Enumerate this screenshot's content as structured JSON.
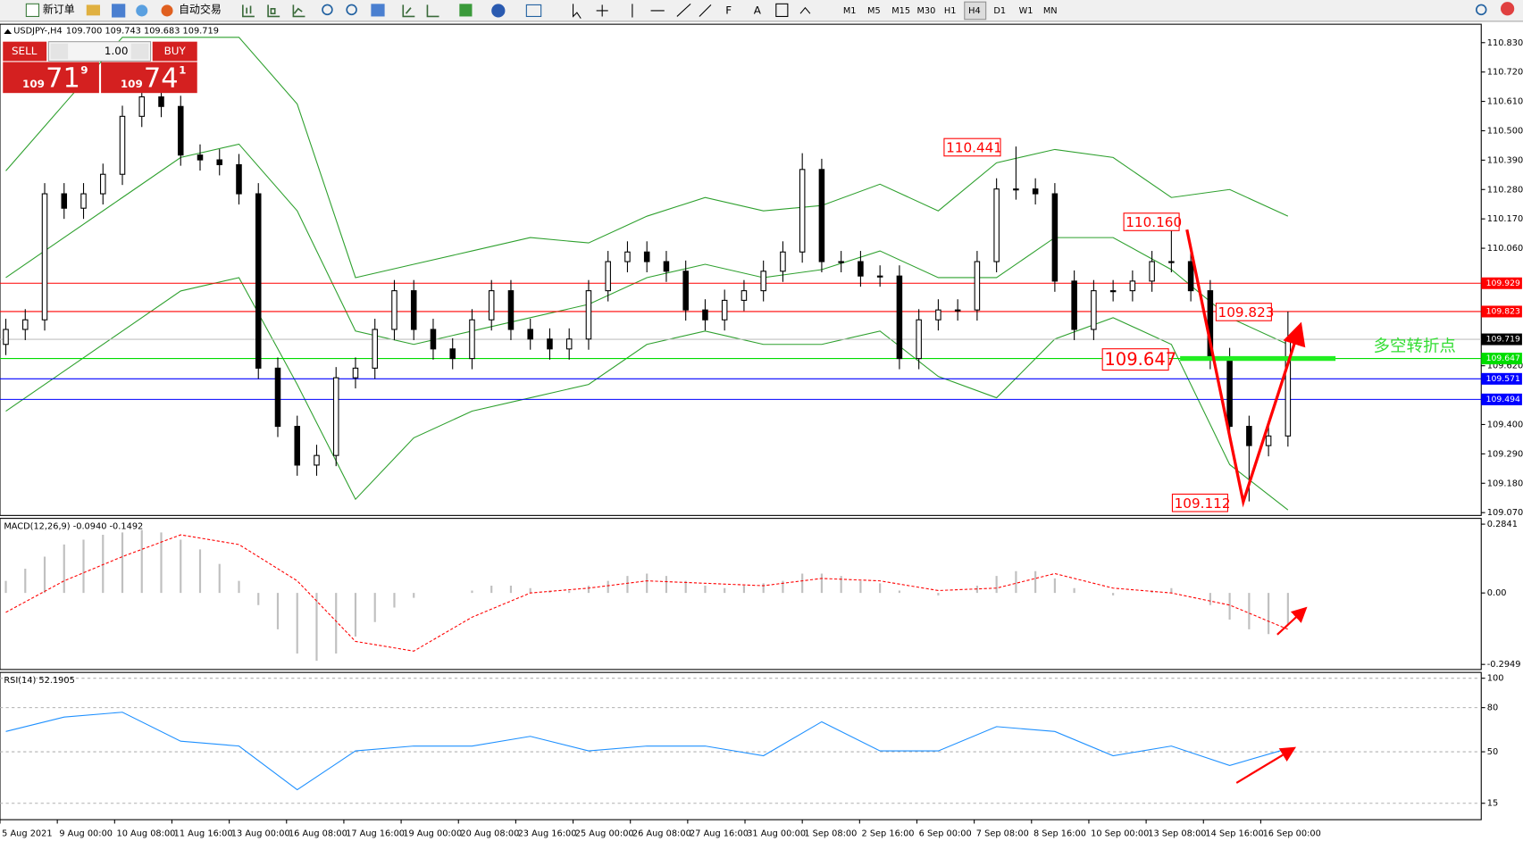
{
  "toolbar": {
    "new_order": "新订单",
    "auto_trading": "自动交易",
    "timeframes": [
      "M1",
      "M5",
      "M15",
      "M30",
      "H1",
      "H4",
      "D1",
      "W1",
      "MN"
    ]
  },
  "trade_panel": {
    "sell": "SELL",
    "buy": "BUY",
    "volume": "1.00",
    "sell_price": {
      "prefix": "109",
      "big": "71",
      "sup": "9"
    },
    "buy_price": {
      "prefix": "109",
      "big": "74",
      "sup": "1"
    }
  },
  "chart_data": [
    {
      "type": "candlestick",
      "title": "USDJPY-,H4",
      "quote": "109.700 109.743 109.683 109.719",
      "up_color": "#ffffff",
      "down_color": "#000000",
      "open": [
        109.7,
        109.756,
        109.792,
        110.264,
        110.21,
        110.264,
        110.337,
        110.554,
        110.627,
        110.591,
        110.409,
        110.391,
        110.373,
        110.264,
        109.611,
        109.393,
        109.248,
        109.284,
        109.575,
        109.611,
        109.756,
        109.901,
        109.756,
        109.683,
        109.647,
        109.792,
        109.901,
        109.756,
        109.72,
        109.683,
        109.72,
        109.901,
        110.01,
        110.046,
        110.01,
        109.974,
        109.829,
        109.792,
        109.865,
        109.901,
        109.974,
        110.046,
        110.355,
        110.01,
        110.01,
        109.956,
        109.956,
        109.647,
        109.792,
        109.829,
        109.829,
        110.01,
        110.282,
        110.282,
        110.264,
        109.937,
        109.756,
        109.901,
        109.901,
        109.937,
        110.01,
        110.01,
        109.901,
        109.647,
        109.393,
        109.321,
        109.357
      ],
      "high": [
        109.796,
        109.832,
        110.304,
        110.304,
        110.304,
        110.377,
        110.594,
        110.667,
        110.667,
        110.631,
        110.449,
        110.431,
        110.413,
        110.304,
        109.651,
        109.433,
        109.324,
        109.615,
        109.651,
        109.796,
        109.941,
        109.941,
        109.796,
        109.723,
        109.832,
        109.941,
        109.941,
        109.796,
        109.76,
        109.76,
        109.941,
        110.05,
        110.086,
        110.086,
        110.05,
        110.014,
        109.869,
        109.905,
        109.941,
        110.014,
        110.086,
        110.416,
        110.395,
        110.05,
        110.05,
        109.996,
        109.996,
        109.832,
        109.869,
        109.869,
        110.05,
        110.322,
        110.441,
        110.322,
        110.304,
        109.977,
        109.941,
        109.941,
        109.977,
        110.05,
        110.16,
        110.05,
        109.941,
        109.687,
        109.433,
        109.397,
        109.823
      ],
      "low": [
        109.66,
        109.716,
        109.752,
        110.17,
        110.17,
        110.224,
        110.297,
        110.514,
        110.551,
        110.369,
        110.351,
        110.333,
        110.224,
        109.571,
        109.353,
        109.208,
        109.208,
        109.244,
        109.535,
        109.571,
        109.716,
        109.716,
        109.643,
        109.607,
        109.607,
        109.752,
        109.716,
        109.68,
        109.643,
        109.643,
        109.68,
        109.861,
        109.97,
        109.97,
        109.934,
        109.789,
        109.752,
        109.752,
        109.825,
        109.861,
        109.934,
        110.006,
        109.97,
        109.97,
        109.916,
        109.916,
        109.607,
        109.607,
        109.752,
        109.789,
        109.789,
        109.97,
        110.242,
        110.224,
        109.897,
        109.716,
        109.716,
        109.861,
        109.861,
        109.897,
        109.97,
        109.861,
        109.607,
        109.353,
        109.112,
        109.281,
        109.317
      ],
      "close": [
        109.756,
        109.792,
        110.264,
        110.21,
        110.264,
        110.337,
        110.554,
        110.627,
        110.591,
        110.409,
        110.391,
        110.373,
        110.264,
        109.611,
        109.393,
        109.248,
        109.284,
        109.575,
        109.611,
        109.756,
        109.901,
        109.756,
        109.683,
        109.647,
        109.792,
        109.901,
        109.756,
        109.72,
        109.683,
        109.72,
        109.901,
        110.01,
        110.046,
        110.01,
        109.974,
        109.829,
        109.792,
        109.865,
        109.901,
        109.974,
        110.046,
        110.355,
        110.01,
        110.01,
        109.956,
        109.956,
        109.647,
        109.792,
        109.829,
        109.829,
        110.01,
        110.282,
        110.282,
        110.264,
        109.937,
        109.756,
        109.901,
        109.901,
        109.937,
        110.01,
        110.01,
        109.901,
        109.647,
        109.393,
        109.321,
        109.357,
        109.719
      ],
      "bands": {
        "color": "#2ea02e",
        "x": [
          0,
          3,
          6,
          9,
          12,
          15,
          18,
          21,
          24,
          27,
          30,
          33,
          36,
          39,
          42,
          45,
          48,
          51,
          54,
          57,
          60,
          63,
          66
        ],
        "upper": [
          110.35,
          110.6,
          110.85,
          110.85,
          110.85,
          110.6,
          109.95,
          110.0,
          110.05,
          110.1,
          110.08,
          110.18,
          110.25,
          110.2,
          110.22,
          110.3,
          110.2,
          110.38,
          110.43,
          110.4,
          110.25,
          110.28,
          110.18
        ],
        "middle": [
          109.95,
          110.1,
          110.25,
          110.4,
          110.45,
          110.2,
          109.75,
          109.7,
          109.75,
          109.8,
          109.85,
          109.95,
          110.0,
          109.95,
          109.98,
          110.05,
          109.95,
          109.95,
          110.1,
          110.1,
          109.98,
          109.8,
          109.7
        ],
        "lower": [
          109.45,
          109.6,
          109.75,
          109.9,
          109.95,
          109.55,
          109.12,
          109.35,
          109.45,
          109.5,
          109.55,
          109.7,
          109.75,
          109.7,
          109.7,
          109.75,
          109.58,
          109.5,
          109.72,
          109.8,
          109.7,
          109.25,
          109.08
        ]
      },
      "levels": [
        {
          "value": 109.929,
          "color": "#ff0000"
        },
        {
          "value": 109.823,
          "color": "#ff0000"
        },
        {
          "value": 109.719,
          "color": "#c0c0c0",
          "label_color": "#000000"
        },
        {
          "value": 109.647,
          "color": "#00dd00"
        },
        {
          "value": 109.571,
          "color": "#0000ff"
        },
        {
          "value": 109.494,
          "color": "#0000ff"
        }
      ],
      "annotations": [
        110.441,
        {
          "value": 110.16,
          "label": "110.160"
        },
        109.823,
        109.647,
        109.112
      ],
      "pivot_note": "多空转折点",
      "ylim": [
        109.063,
        110.899
      ],
      "yticks": [
        {
          "value": 110.83,
          "label": "110.830"
        },
        {
          "value": 110.72,
          "label": "110.720"
        },
        {
          "value": 110.61,
          "label": "110.610"
        },
        {
          "value": 110.5,
          "label": "110.500"
        },
        {
          "value": 110.39,
          "label": "110.390"
        },
        {
          "value": 110.28,
          "label": "110.280"
        },
        {
          "value": 110.17,
          "label": "110.170"
        },
        {
          "value": 110.06,
          "label": "110.060"
        },
        {
          "value": 109.62,
          "label": "109.620"
        },
        {
          "value": 109.4,
          "label": "109.400"
        },
        {
          "value": 109.29,
          "label": "109.290"
        },
        {
          "value": 109.18,
          "label": "109.180"
        },
        {
          "value": 109.07,
          "label": "109.070"
        }
      ],
      "x_labels": [
        "5 Aug 2021",
        "9 Aug 00:00",
        "10 Aug 08:00",
        "11 Aug 16:00",
        "13 Aug 00:00",
        "16 Aug 08:00",
        "17 Aug 16:00",
        "19 Aug 00:00",
        "20 Aug 08:00",
        "23 Aug 16:00",
        "25 Aug 00:00",
        "26 Aug 08:00",
        "27 Aug 16:00",
        "31 Aug 00:00",
        "1 Sep 08:00",
        "2 Sep 16:00",
        "6 Sep 00:00",
        "7 Sep 08:00",
        "8 Sep 16:00",
        "10 Sep 00:00",
        "13 Sep 08:00",
        "14 Sep 16:00",
        "16 Sep 00:00"
      ]
    },
    {
      "type": "macd",
      "title": "MACD(12,26,9) -0.0940 -0.1492",
      "color": "#c0c0c0",
      "signal_color": "#ff0000",
      "histogram": [
        0.05,
        0.1,
        0.15,
        0.2,
        0.22,
        0.24,
        0.25,
        0.26,
        0.25,
        0.22,
        0.18,
        0.12,
        0.05,
        -0.05,
        -0.15,
        -0.25,
        -0.28,
        -0.25,
        -0.18,
        -0.12,
        -0.06,
        -0.02,
        0.0,
        0.0,
        0.01,
        0.03,
        0.03,
        0.02,
        0.01,
        0.01,
        0.03,
        0.05,
        0.07,
        0.08,
        0.07,
        0.05,
        0.03,
        0.02,
        0.03,
        0.04,
        0.05,
        0.08,
        0.08,
        0.07,
        0.05,
        0.04,
        0.01,
        0.0,
        -0.01,
        0.0,
        0.03,
        0.07,
        0.09,
        0.09,
        0.06,
        0.02,
        0.0,
        -0.01,
        0.0,
        0.01,
        0.02,
        0.0,
        -0.05,
        -0.11,
        -0.15,
        -0.17,
        -0.13
      ],
      "signal": {
        "x": [
          0,
          3,
          6,
          9,
          12,
          15,
          18,
          21,
          24,
          27,
          30,
          33,
          36,
          39,
          42,
          45,
          48,
          51,
          54,
          57,
          60,
          63,
          66
        ],
        "values": [
          -0.08,
          0.05,
          0.15,
          0.24,
          0.2,
          0.05,
          -0.2,
          -0.24,
          -0.1,
          0.0,
          0.02,
          0.05,
          0.04,
          0.03,
          0.06,
          0.05,
          0.01,
          0.02,
          0.08,
          0.02,
          0.0,
          -0.05,
          -0.15
        ]
      },
      "ylim": [
        -0.312,
        0.304
      ],
      "yticks": [
        0.2841,
        {
          "value": 0,
          "label": "0.00"
        },
        -0.2949
      ]
    },
    {
      "type": "line",
      "title": "RSI(14) 52.1905",
      "color": "#1e90ff",
      "x": [
        0,
        3,
        6,
        9,
        12,
        15,
        18,
        21,
        24,
        27,
        30,
        33,
        36,
        39,
        42,
        45,
        48,
        51,
        54,
        57,
        60,
        63,
        66
      ],
      "values": [
        63.8,
        73.6,
        76.9,
        57.2,
        53.9,
        24.2,
        50.6,
        53.9,
        53.9,
        60.5,
        50.6,
        53.9,
        53.9,
        47.3,
        70.4,
        50.6,
        50.6,
        67.1,
        63.8,
        47.3,
        53.9,
        40.7,
        52.2
      ],
      "ylim": [
        4.5,
        103.3
      ],
      "yticks": [
        100,
        80,
        50,
        15
      ]
    }
  ]
}
